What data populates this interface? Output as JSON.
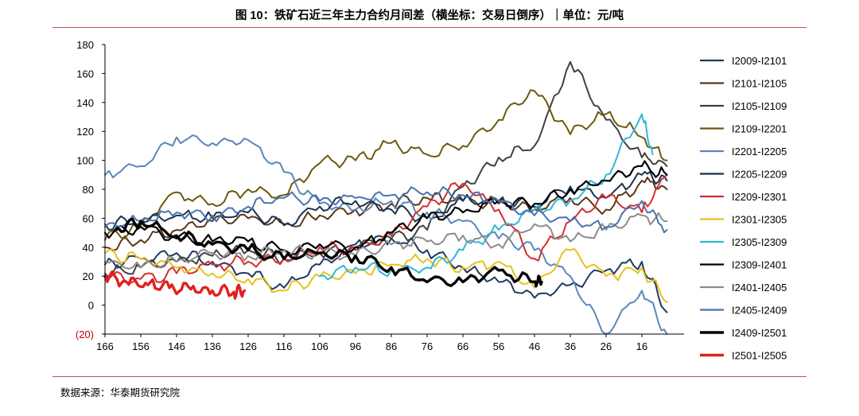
{
  "title": "图 10：铁矿石近三年主力合约月间差（横坐标：交易日倒序）｜单位：元/吨",
  "source": "数据来源：华泰期货研究院",
  "chart_data": {
    "type": "line",
    "title": "图 10：铁矿石近三年主力合约月间差（横坐标：交易日倒序）｜单位：元/吨",
    "xlabel": "交易日倒序",
    "ylabel": "元/吨",
    "xlim": [
      166,
      6
    ],
    "ylim": [
      -20,
      180
    ],
    "y_ticks": [
      -20,
      0,
      20,
      40,
      60,
      80,
      100,
      120,
      140,
      160,
      180
    ],
    "y_tick_labels": [
      "(20)",
      "0",
      "20",
      "40",
      "60",
      "80",
      "100",
      "120",
      "140",
      "160",
      "180"
    ],
    "x_ticks": [
      166,
      156,
      146,
      136,
      126,
      116,
      106,
      96,
      86,
      76,
      66,
      56,
      46,
      36,
      26,
      16
    ],
    "x_tick_labels": [
      "166",
      "156",
      "146",
      "136",
      "126",
      "116",
      "106",
      "96",
      "86",
      "76",
      "66",
      "56",
      "46",
      "36",
      "26",
      "16"
    ],
    "grid": false,
    "legend_position": "right",
    "series": [
      {
        "name": "I2009-I2101",
        "color": "#1f3864",
        "width": 2,
        "x": [
          166,
          156,
          146,
          136,
          126,
          116,
          106,
          96,
          86,
          76,
          66,
          56,
          46,
          36,
          26,
          16,
          9
        ],
        "y": [
          28,
          32,
          36,
          30,
          22,
          12,
          28,
          42,
          46,
          38,
          26,
          16,
          5,
          14,
          24,
          30,
          -5
        ]
      },
      {
        "name": "I2101-I2105",
        "color": "#5a3519",
        "width": 2,
        "x": [
          166,
          156,
          146,
          136,
          126,
          116,
          106,
          96,
          86,
          76,
          66,
          56,
          46,
          36,
          26,
          16,
          9
        ],
        "y": [
          40,
          45,
          52,
          58,
          60,
          55,
          62,
          66,
          70,
          74,
          72,
          70,
          66,
          74,
          66,
          86,
          80
        ]
      },
      {
        "name": "I2105-I2109",
        "color": "#404040",
        "width": 2,
        "x": [
          166,
          156,
          146,
          136,
          126,
          116,
          106,
          96,
          86,
          76,
          66,
          56,
          46,
          36,
          26,
          16,
          9
        ],
        "y": [
          22,
          26,
          30,
          34,
          38,
          32,
          36,
          40,
          46,
          52,
          82,
          102,
          110,
          168,
          128,
          102,
          96
        ]
      },
      {
        "name": "I2109-I2201",
        "color": "#6b5a0e",
        "width": 2,
        "x": [
          166,
          156,
          146,
          136,
          126,
          116,
          106,
          96,
          86,
          76,
          66,
          56,
          46,
          36,
          26,
          16,
          9
        ],
        "y": [
          45,
          55,
          78,
          70,
          80,
          76,
          98,
          100,
          112,
          104,
          110,
          128,
          148,
          118,
          132,
          116,
          100
        ]
      },
      {
        "name": "I2201-I2205",
        "color": "#5b86bb",
        "width": 2,
        "x": [
          166,
          156,
          146,
          136,
          126,
          116,
          106,
          96,
          86,
          76,
          66,
          56,
          46,
          36,
          26,
          16,
          9
        ],
        "y": [
          90,
          96,
          116,
          112,
          114,
          92,
          70,
          66,
          72,
          64,
          58,
          46,
          38,
          20,
          -20,
          10,
          -20
        ]
      },
      {
        "name": "I2205-I2209",
        "color": "#1b3150",
        "width": 2,
        "x": [
          166,
          156,
          146,
          136,
          126,
          116,
          106,
          96,
          86,
          76,
          66,
          56,
          46,
          36,
          26,
          16,
          9
        ],
        "y": [
          56,
          58,
          62,
          60,
          64,
          56,
          68,
          72,
          66,
          60,
          72,
          72,
          68,
          82,
          74,
          90,
          86
        ]
      },
      {
        "name": "I2209-I2301",
        "color": "#d32f2f",
        "width": 2,
        "x": [
          166,
          156,
          146,
          136,
          126,
          116,
          106,
          96,
          86,
          76,
          66,
          56,
          46,
          36,
          26,
          16,
          9
        ],
        "y": [
          20,
          18,
          22,
          28,
          30,
          32,
          40,
          38,
          48,
          68,
          84,
          66,
          32,
          58,
          74,
          64,
          90
        ]
      },
      {
        "name": "I2301-I2305",
        "color": "#e8c21c",
        "width": 2,
        "x": [
          166,
          156,
          146,
          136,
          126,
          116,
          106,
          96,
          86,
          76,
          66,
          56,
          46,
          36,
          26,
          16,
          9
        ],
        "y": [
          36,
          32,
          26,
          22,
          18,
          10,
          20,
          22,
          28,
          32,
          26,
          30,
          12,
          38,
          20,
          26,
          2
        ]
      },
      {
        "name": "I2305-I2309",
        "color": "#2fb8d8",
        "width": 2,
        "x": [
          106,
          96,
          86,
          76,
          66,
          56,
          46,
          36,
          26,
          16,
          13
        ],
        "y": [
          20,
          26,
          24,
          26,
          38,
          52,
          66,
          72,
          90,
          132,
          104
        ]
      },
      {
        "name": "I2309-I2401",
        "color": "#000000",
        "width": 2.2,
        "x": [
          166,
          156,
          146,
          136,
          126,
          116,
          106,
          96,
          86,
          76,
          66,
          56,
          46,
          36,
          26,
          16,
          9
        ],
        "y": [
          50,
          54,
          46,
          44,
          44,
          38,
          42,
          40,
          50,
          60,
          64,
          72,
          70,
          80,
          86,
          96,
          90
        ]
      },
      {
        "name": "I2401-I2405",
        "color": "#8c8c8c",
        "width": 2,
        "x": [
          166,
          156,
          146,
          136,
          126,
          116,
          106,
          96,
          86,
          76,
          66,
          56,
          46,
          36,
          26,
          16,
          9
        ],
        "y": [
          30,
          26,
          30,
          36,
          34,
          38,
          36,
          34,
          42,
          44,
          48,
          42,
          56,
          44,
          52,
          62,
          58
        ]
      },
      {
        "name": "I2405-I2409",
        "color": "#4a72b0",
        "width": 2,
        "x": [
          166,
          156,
          146,
          136,
          126,
          116,
          106,
          96,
          86,
          76,
          66,
          56,
          46,
          36,
          26,
          16,
          9
        ],
        "y": [
          54,
          58,
          64,
          62,
          68,
          74,
          72,
          74,
          76,
          78,
          76,
          72,
          62,
          58,
          54,
          72,
          52
        ]
      },
      {
        "name": "I2409-I2501",
        "color": "#000000",
        "width": 3.4,
        "x": [
          163,
          156,
          146,
          136,
          126,
          116,
          106,
          96,
          86,
          76,
          66,
          56,
          46,
          44
        ],
        "y": [
          52,
          58,
          48,
          42,
          38,
          32,
          36,
          34,
          26,
          16,
          16,
          24,
          16,
          16
        ]
      },
      {
        "name": "I2501-I2505",
        "color": "#e02020",
        "width": 3.4,
        "x": [
          166,
          160,
          154,
          148,
          142,
          136,
          130,
          127
        ],
        "y": [
          20,
          16,
          14,
          12,
          11,
          10,
          9,
          10
        ]
      }
    ]
  }
}
